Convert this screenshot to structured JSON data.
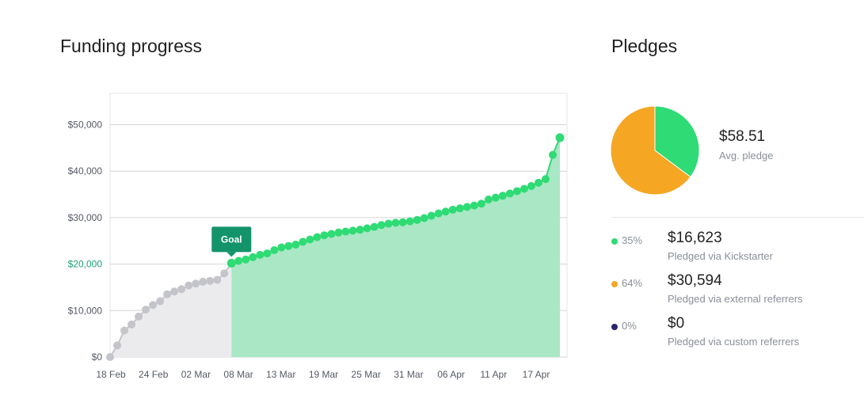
{
  "funding": {
    "title": "Funding progress",
    "goal_label": "Goal",
    "goal_value": 20000,
    "goal_date": "08 Mar"
  },
  "pledges": {
    "title": "Pledges",
    "avg_value": "$58.51",
    "avg_label": "Avg. pledge",
    "breakdown": [
      {
        "pct": "35%",
        "amount": "$16,623",
        "desc": "Pledged via Kickstarter",
        "color": "#2edb74"
      },
      {
        "pct": "64%",
        "amount": "$30,594",
        "desc": "Pledged via external referrers",
        "color": "#f5a623"
      },
      {
        "pct": "0%",
        "amount": "$0",
        "desc": "Pledged via custom referrers",
        "color": "#2a2470"
      }
    ]
  },
  "colors": {
    "pre_goal_point": "#c4c4cb",
    "pre_goal_area": "#ebebee",
    "post_goal_point": "#2edb74",
    "post_goal_area": "#aae7c5",
    "goal_badge": "#13936a",
    "grid": "#d4d4d4"
  },
  "chart_data": [
    {
      "type": "area",
      "x_start": "18 Feb",
      "x_end": "20 Apr",
      "x_tick_labels": [
        "18 Feb",
        "24 Feb",
        "02 Mar",
        "08 Mar",
        "13 Mar",
        "19 Mar",
        "25 Mar",
        "31 Mar",
        "06 Apr",
        "11 Apr",
        "17 Apr"
      ],
      "y_tick_labels": [
        "$0",
        "$10,000",
        "$20,000",
        "$30,000",
        "$40,000",
        "$50,000"
      ],
      "ylim": [
        0,
        50000
      ],
      "grid": true,
      "goal_index": 17,
      "values": [
        0,
        2500,
        5700,
        7000,
        8700,
        10200,
        11200,
        12000,
        13500,
        14100,
        14600,
        15400,
        15800,
        16200,
        16400,
        16600,
        18000,
        20200,
        20700,
        21000,
        21500,
        22000,
        22300,
        23000,
        23600,
        23900,
        24200,
        24800,
        25300,
        25800,
        26200,
        26500,
        26800,
        27000,
        27200,
        27400,
        27700,
        28000,
        28400,
        28700,
        28900,
        29000,
        29200,
        29500,
        29900,
        30400,
        30900,
        31300,
        31700,
        32000,
        32300,
        32600,
        33000,
        33900,
        34300,
        34700,
        35200,
        35700,
        36200,
        36800,
        37500,
        38300,
        43500,
        47200
      ]
    },
    {
      "type": "pie",
      "labels": [
        "Pledged via Kickstarter",
        "Pledged via external referrers",
        "Pledged via custom referrers"
      ],
      "values": [
        16623,
        30594,
        0
      ],
      "colors": [
        "#2edb74",
        "#f5a623",
        "#2a2470"
      ]
    }
  ]
}
